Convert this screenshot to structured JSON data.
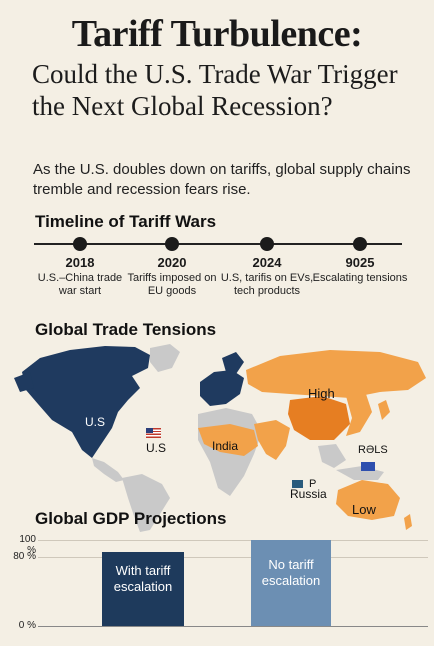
{
  "header": {
    "title": "Tariff Turbulence:",
    "subtitle": "Could the U.S. Trade War Trigger the Next Global Recession?",
    "dek": "As the U.S. doubles down on tariffs, global supply chains tremble and recession fears rise."
  },
  "timeline": {
    "heading": "Timeline of Tariff Wars",
    "events": [
      {
        "year": "2018",
        "text": "U.S.–China trade war start"
      },
      {
        "year": "2020",
        "text": "Tariffs imposed on EU goods"
      },
      {
        "year": "2024",
        "text": "U.S, tarifis on EVs, tech products"
      },
      {
        "year": "9025",
        "text": "Escalating tensions"
      }
    ]
  },
  "trade_map": {
    "heading": "Global Trade Tensions",
    "labels": {
      "us": "U.S",
      "us_flag_label": "U.S",
      "india": "India",
      "high": "High",
      "russia": "Russia",
      "p": "P",
      "rsls": "RƏLS",
      "low": "Low"
    },
    "colors": {
      "ocean": "#f4efe4",
      "us_region": "#1f3a5f",
      "high_region": "#f2a24a",
      "hot_region": "#e67e22",
      "neutral": "#c9c9c9",
      "eu_region": "#1f3a5f"
    }
  },
  "gdp": {
    "heading": "Global GDP Projections",
    "colors": {
      "with_tariff": "#1e3a5c",
      "no_tariff": "#6c8fb3"
    }
  },
  "chart_data": {
    "type": "bar",
    "categories": [
      "With tariff escalation",
      "No tariff escalation"
    ],
    "values": [
      86,
      100
    ],
    "ylim": [
      0,
      100
    ],
    "yticks": [
      "100 %",
      "80 %",
      "0 %"
    ],
    "title": "Global GDP Projections",
    "xlabel": "",
    "ylabel": ""
  }
}
